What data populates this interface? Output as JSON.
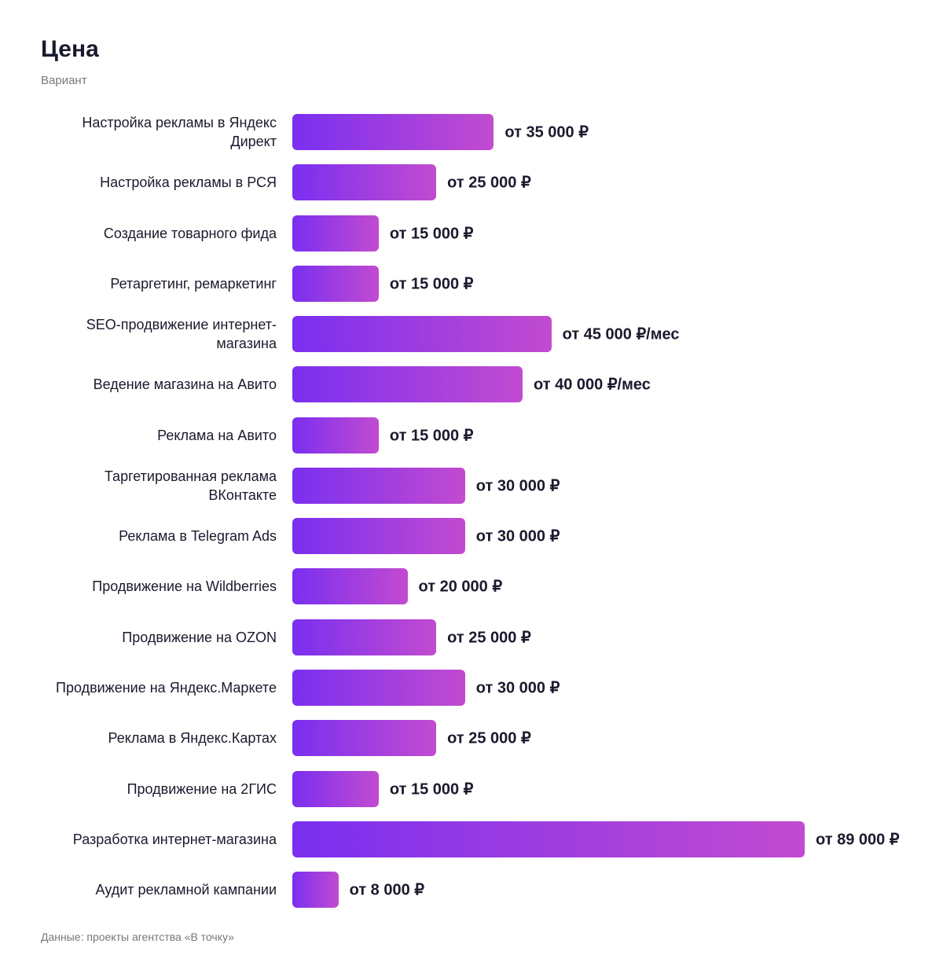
{
  "chart_data": {
    "type": "barh",
    "title": "Цена",
    "subtitle": "Вариант",
    "source": "Данные: проекты агентства «В точку»",
    "categories": [
      "Настройка рекламы в Яндекс Директ",
      "Настройка рекламы в РСЯ",
      "Создание товарного фида",
      "Ретаргетинг, ремаркетинг",
      "SEO-продвижение интернет-магазина",
      "Ведение магазина на Авито",
      "Реклама на Авито",
      "Таргетированная реклама ВКонтакте",
      "Реклама в Telegram Ads",
      "Продвижение на Wildberries",
      "Продвижение на OZON",
      "Продвижение на Яндекс.Маркете",
      "Реклама в Яндекс.Картах",
      "Продвижение на 2ГИС",
      "Разработка интернет-магазина",
      "Аудит рекламной кампании"
    ],
    "values": [
      35000,
      25000,
      15000,
      15000,
      45000,
      40000,
      15000,
      30000,
      30000,
      20000,
      25000,
      30000,
      25000,
      15000,
      89000,
      8000
    ],
    "value_labels": [
      "от 35 000 ₽",
      "от 25 000 ₽",
      "от 15 000 ₽",
      "от 15 000 ₽",
      "от 45 000 ₽/мес",
      "от 40 000 ₽/мес",
      "от 15 000 ₽",
      "от 30 000 ₽",
      "от 30 000 ₽",
      "от 20 000 ₽",
      "от 25 000 ₽",
      "от 30 000 ₽",
      "от 25 000 ₽",
      "от 15 000 ₽",
      "от 89 000 ₽",
      "от 8 000 ₽"
    ],
    "gradient": [
      "#7a2ff0",
      "#c24bd0"
    ]
  }
}
